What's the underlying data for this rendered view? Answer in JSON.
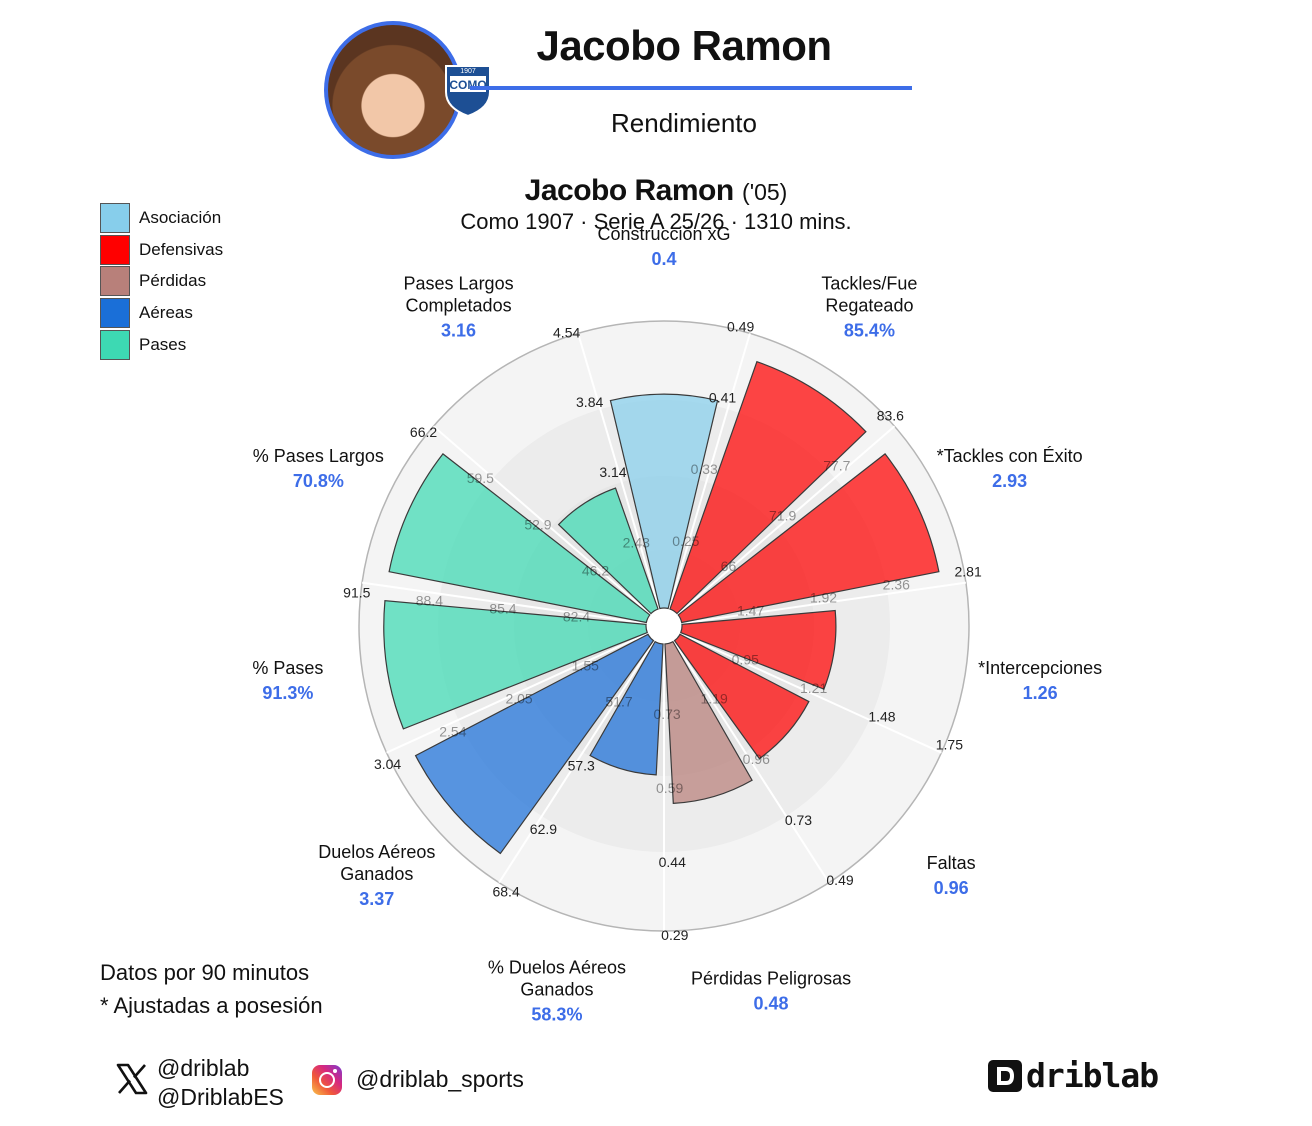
{
  "header": {
    "title": "Jacobo Ramon",
    "subtitle": "Rendimiento",
    "avatar_icon": "player-photo",
    "club_badge_text": "COMO",
    "club_badge_year": "1907"
  },
  "legend": [
    {
      "label": "Asociación",
      "color": "#87ceeb"
    },
    {
      "label": "Defensivas",
      "color": "#ff0000"
    },
    {
      "label": "Pérdidas",
      "color": "#b8807a"
    },
    {
      "label": "Aéreas",
      "color": "#1a6fd8"
    },
    {
      "label": "Pases",
      "color": "#3dd9b3"
    }
  ],
  "footnotes": [
    "Datos por 90 minutos",
    "* Ajustadas a posesión"
  ],
  "social": {
    "x_handles": [
      "@driblab",
      "@DriblabES"
    ],
    "instagram": "@driblab_sports",
    "brand": "driblab"
  },
  "chart_data": {
    "type": "radar-bar",
    "title": {
      "name": "Jacobo Ramon",
      "year": "('05)"
    },
    "subtitle": "Como 1907 · Serie A 25/26 · 1310 mins.",
    "grid": true,
    "segments": [
      {
        "label": "Construcción xG",
        "value_label": "0.4",
        "value": 0.4,
        "fill": 0.75,
        "group": "Asociación",
        "ticks": [
          "0.25",
          "0.33",
          "0.41",
          "0.49"
        ]
      },
      {
        "label": "Tackles/Fue\nRegateado",
        "value_label": "85.4%",
        "value": 85.4,
        "fill": 0.92,
        "group": "Defensivas",
        "ticks": [
          "66",
          "71.9",
          "77.7",
          "83.6"
        ]
      },
      {
        "label": "*Tackles con Éxito",
        "value_label": "2.93",
        "value": 2.93,
        "fill": 0.92,
        "group": "Defensivas",
        "ticks": [
          "1.47",
          "1.92",
          "2.36",
          "2.81"
        ]
      },
      {
        "label": "*Intercepciones",
        "value_label": "1.26",
        "value": 1.26,
        "fill": 0.54,
        "group": "Defensivas",
        "ticks": [
          "0.95",
          "1.21",
          "1.48",
          "1.75"
        ]
      },
      {
        "label": "Faltas",
        "value_label": "0.96",
        "value": 0.96,
        "fill": 0.51,
        "group": "Defensivas",
        "ticks": [
          "1.19",
          "0.96",
          "0.73",
          "0.49"
        ]
      },
      {
        "label": "Pérdidas Peligrosas",
        "value_label": "0.48",
        "value": 0.48,
        "fill": 0.56,
        "group": "Pérdidas",
        "ticks": [
          "0.73",
          "0.59",
          "0.44",
          "0.29"
        ]
      },
      {
        "label": "% Duelos Aéreos\nGanados",
        "value_label": "58.3%",
        "value": 58.3,
        "fill": 0.46,
        "group": "Aéreas",
        "ticks": [
          "51.7",
          "57.3",
          "62.9",
          "68.4"
        ]
      },
      {
        "label": "Duelos Aéreos\nGanados",
        "value_label": "3.37",
        "value": 3.37,
        "fill": 0.92,
        "group": "Aéreas",
        "ticks": [
          "1.55",
          "2.05",
          "2.54",
          "3.04"
        ]
      },
      {
        "label": "% Pases",
        "value_label": "91.3%",
        "value": 91.3,
        "fill": 0.92,
        "group": "Pases",
        "ticks": [
          "82.4",
          "85.4",
          "88.4",
          "91.5"
        ]
      },
      {
        "label": "% Pases Largos",
        "value_label": "70.8%",
        "value": 70.8,
        "fill": 0.92,
        "group": "Pases",
        "ticks": [
          "46.2",
          "52.9",
          "59.5",
          "66.2"
        ]
      },
      {
        "label": "Pases Largos\nCompletados",
        "value_label": "3.16",
        "value": 3.16,
        "fill": 0.45,
        "group": "Pases",
        "ticks": [
          "2.43",
          "3.14",
          "3.84",
          "4.54"
        ]
      }
    ]
  }
}
